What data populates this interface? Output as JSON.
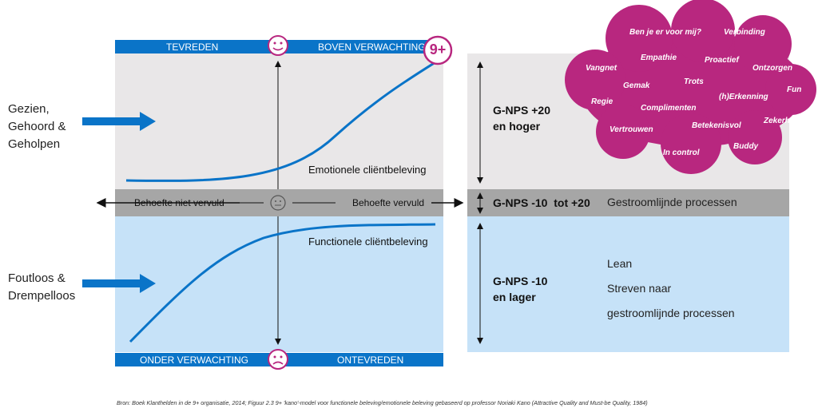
{
  "left_labels": {
    "top": [
      "Gezien,",
      "Gehoord &",
      "Geholpen"
    ],
    "bottom": [
      "Foutloos &",
      "Drempelloos"
    ]
  },
  "top_bar": {
    "left": "TEVREDEN",
    "right": "BOVEN VERWACHTING",
    "badge": "9+"
  },
  "bottom_bar": {
    "left": "ONDER VERWACHTING",
    "right": "ONTEVREDEN"
  },
  "middle_bar": {
    "left": "Behoefte niet vervuld",
    "right": "Behoefte vervuld"
  },
  "curves": {
    "emotional": "Emotionele cliëntbeleving",
    "functional": "Functionele cliëntbeleving"
  },
  "right_panel": {
    "top": [
      "G-NPS +20",
      "en hoger"
    ],
    "middle_score": "G-NPS -10  tot +20",
    "middle_text": "Gestroomlijnde processen",
    "bottom": [
      "G-NPS -10",
      "en lager"
    ],
    "bottom_list": [
      "Lean",
      "Streven naar",
      "gestroomlijnde processen"
    ]
  },
  "cloud_words": [
    "Ben je er voor mij?",
    "Verbinding",
    "Empathie",
    "Vangnet",
    "Proactief",
    "Ontzorgen",
    "Gemak",
    "Trots",
    "Fun",
    "Regie",
    "(h)Erkenning",
    "Complimenten",
    "Zekerheid",
    "Vertrouwen",
    "Betekenisvol",
    "Buddy",
    "In control"
  ],
  "source": "Bron: Boek Klanthelden in de 9+ organisatie, 2014; Figuur 2.3 9+ 'kano'-model voor functionele beleving/emotionele beleving gebaseerd op professor Noriaki Kano (Attractive Quality and Must-be Quality, 1984)",
  "colors": {
    "blue": "#0A74C8",
    "light_blue": "#C6E2F8",
    "light_gray": "#E9E7E8",
    "gray": "#A6A6A6",
    "magenta": "#B8277F"
  }
}
